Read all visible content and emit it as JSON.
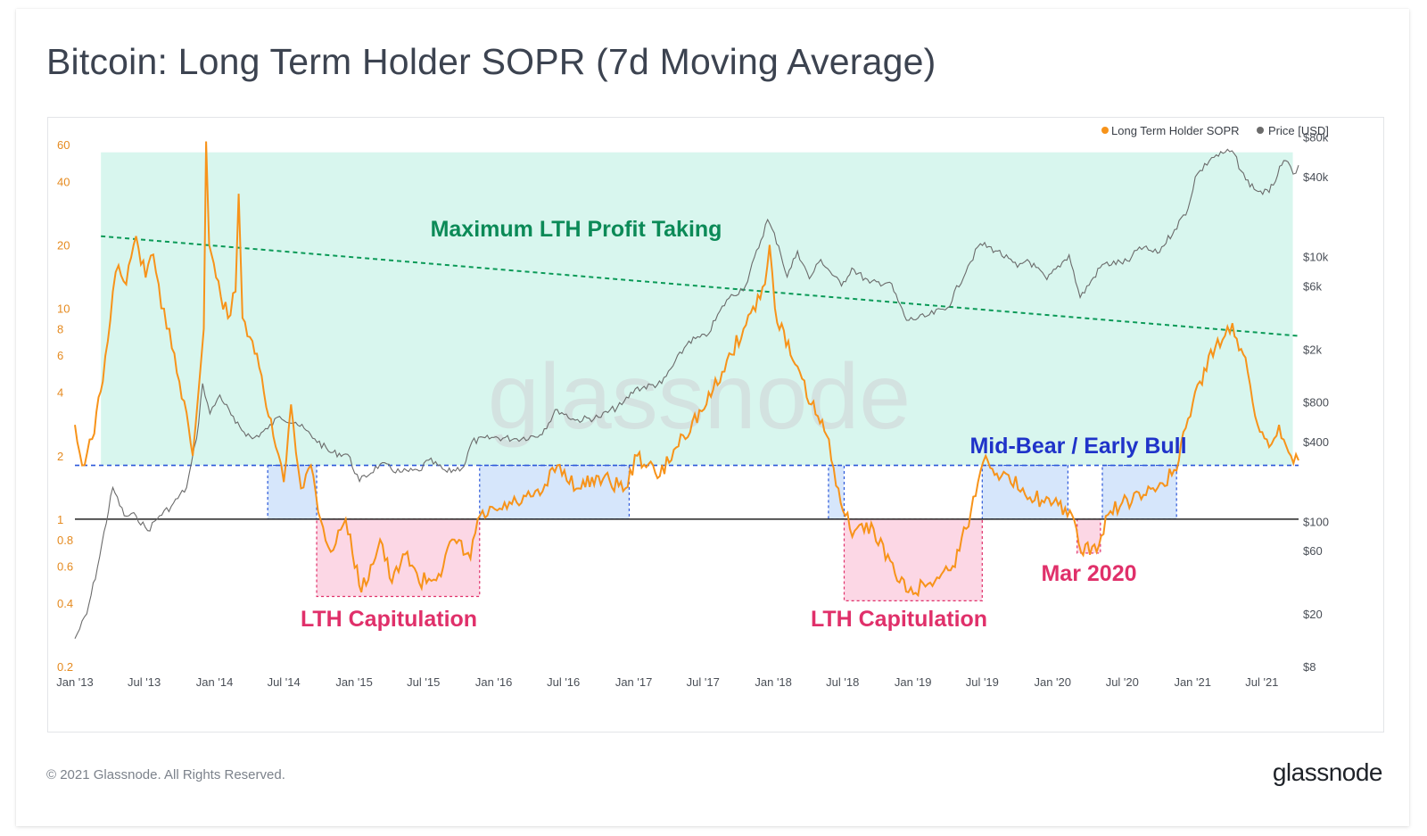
{
  "header": {
    "title": "Bitcoin: Long Term Holder SOPR (7d Moving Average)"
  },
  "footer": {
    "copyright": "© 2021 Glassnode. All Rights Reserved.",
    "brand": "glassnode"
  },
  "watermark": "glassnode",
  "colors": {
    "sopr": "#f7931a",
    "price": "#6b6b6b",
    "profit_zone": "#d8f6ee",
    "profit_line": "#0a9a57",
    "capitulation": "#fcd7e5",
    "capitulation_border": "#e0306a",
    "midbear": "#d6e6fb",
    "midbear_border": "#2b57d9",
    "baseline": "#222222"
  },
  "chart_data": {
    "type": "line",
    "title": "Bitcoin: Long Term Holder SOPR (7d Moving Average)",
    "x_tick_labels": [
      "Jan '13",
      "Jul '13",
      "Jan '14",
      "Jul '14",
      "Jan '15",
      "Jul '15",
      "Jan '16",
      "Jul '16",
      "Jan '17",
      "Jul '17",
      "Jan '18",
      "Jul '18",
      "Jan '19",
      "Jul '19",
      "Jan '20",
      "Jul '20",
      "Jan '21",
      "Jul '21"
    ],
    "x_range": [
      "2013-01-01",
      "2021-10-05"
    ],
    "y_left": {
      "scale": "log",
      "range": [
        0.2,
        70
      ],
      "ticks": [
        0.2,
        0.4,
        0.6,
        0.8,
        1,
        2,
        4,
        6,
        8,
        10,
        20,
        40,
        60
      ],
      "tick_labels": [
        "0.2",
        "0.4",
        "0.6",
        "0.8",
        "1",
        "2",
        "4",
        "6",
        "8",
        "10",
        "20",
        "40",
        "60"
      ]
    },
    "y_right": {
      "scale": "log",
      "range": [
        8,
        90000
      ],
      "ticks": [
        8,
        20,
        60,
        100,
        400,
        800,
        2000,
        6000,
        10000,
        40000,
        80000
      ],
      "tick_labels": [
        "$8",
        "$20",
        "$60",
        "$100",
        "$400",
        "$800",
        "$2k",
        "$6k",
        "$10k",
        "$40k",
        "$80k"
      ]
    },
    "legend": {
      "placement": "top-right",
      "entries": [
        "Long Term Holder SOPR",
        "Price [USD]"
      ]
    },
    "series": [
      {
        "name": "Long Term Holder SOPR",
        "axis": "left",
        "points": [
          [
            "2013-01-01",
            2.8
          ],
          [
            "2013-01-20",
            1.8
          ],
          [
            "2013-02-15",
            2.4
          ],
          [
            "2013-03-15",
            4.5
          ],
          [
            "2013-04-10",
            12
          ],
          [
            "2013-04-25",
            16
          ],
          [
            "2013-05-15",
            13
          ],
          [
            "2013-06-10",
            22
          ],
          [
            "2013-07-05",
            14
          ],
          [
            "2013-07-25",
            18
          ],
          [
            "2013-08-15",
            10
          ],
          [
            "2013-09-05",
            8
          ],
          [
            "2013-10-01",
            4.5
          ],
          [
            "2013-10-20",
            3.2
          ],
          [
            "2013-11-05",
            2
          ],
          [
            "2013-11-20",
            4
          ],
          [
            "2013-12-04",
            8
          ],
          [
            "2013-12-10",
            62
          ],
          [
            "2013-12-18",
            20
          ],
          [
            "2014-01-05",
            14
          ],
          [
            "2014-02-05",
            9
          ],
          [
            "2014-02-25",
            12
          ],
          [
            "2014-03-05",
            35
          ],
          [
            "2014-03-15",
            9
          ],
          [
            "2014-04-10",
            7
          ],
          [
            "2014-05-10",
            4
          ],
          [
            "2014-06-10",
            2.2
          ],
          [
            "2014-07-01",
            1.5
          ],
          [
            "2014-07-20",
            3.5
          ],
          [
            "2014-08-15",
            1.4
          ],
          [
            "2014-09-10",
            1.8
          ],
          [
            "2014-10-05",
            1.0
          ],
          [
            "2014-11-01",
            0.7
          ],
          [
            "2014-12-10",
            1.0
          ],
          [
            "2015-01-20",
            0.45
          ],
          [
            "2015-03-10",
            0.8
          ],
          [
            "2015-04-10",
            0.5
          ],
          [
            "2015-05-20",
            0.7
          ],
          [
            "2015-06-20",
            0.5
          ],
          [
            "2015-08-10",
            0.55
          ],
          [
            "2015-09-20",
            0.8
          ],
          [
            "2015-11-01",
            0.65
          ],
          [
            "2015-11-20",
            1.0
          ],
          [
            "2016-01-10",
            1.1
          ],
          [
            "2016-03-01",
            1.2
          ],
          [
            "2016-05-01",
            1.3
          ],
          [
            "2016-06-15",
            1.8
          ],
          [
            "2016-08-10",
            1.4
          ],
          [
            "2016-10-01",
            1.6
          ],
          [
            "2016-12-10",
            1.4
          ],
          [
            "2017-01-10",
            2.0
          ],
          [
            "2017-03-10",
            1.6
          ],
          [
            "2017-05-10",
            2.5
          ],
          [
            "2017-07-10",
            3.5
          ],
          [
            "2017-08-20",
            5.0
          ],
          [
            "2017-10-15",
            8.0
          ],
          [
            "2017-12-10",
            13
          ],
          [
            "2017-12-22",
            20
          ],
          [
            "2018-01-05",
            10
          ],
          [
            "2018-02-15",
            6
          ],
          [
            "2018-04-10",
            3.5
          ],
          [
            "2018-05-20",
            2.5
          ],
          [
            "2018-06-20",
            1.4
          ],
          [
            "2018-07-20",
            0.9
          ],
          [
            "2018-09-20",
            0.9
          ],
          [
            "2018-11-15",
            0.55
          ],
          [
            "2018-12-20",
            0.45
          ],
          [
            "2019-02-15",
            0.5
          ],
          [
            "2019-04-15",
            0.6
          ],
          [
            "2019-05-20",
            0.9
          ],
          [
            "2019-06-20",
            1.5
          ],
          [
            "2019-07-10",
            2.0
          ],
          [
            "2019-08-20",
            1.6
          ],
          [
            "2019-10-15",
            1.4
          ],
          [
            "2019-12-10",
            1.2
          ],
          [
            "2020-02-15",
            1.1
          ],
          [
            "2020-03-15",
            0.7
          ],
          [
            "2020-05-01",
            0.75
          ],
          [
            "2020-05-25",
            1.05
          ],
          [
            "2020-07-01",
            1.2
          ],
          [
            "2020-09-01",
            1.3
          ],
          [
            "2020-11-20",
            1.7
          ],
          [
            "2020-12-20",
            3.0
          ],
          [
            "2021-01-20",
            4.5
          ],
          [
            "2021-03-01",
            6.5
          ],
          [
            "2021-04-15",
            8.5
          ],
          [
            "2021-05-25",
            5.0
          ],
          [
            "2021-06-20",
            2.8
          ],
          [
            "2021-07-20",
            2.2
          ],
          [
            "2021-08-15",
            2.8
          ],
          [
            "2021-09-15",
            2.0
          ],
          [
            "2021-10-05",
            1.9
          ]
        ]
      },
      {
        "name": "Price [USD]",
        "axis": "right",
        "points": [
          [
            "2013-01-01",
            13
          ],
          [
            "2013-02-01",
            20
          ],
          [
            "2013-03-01",
            45
          ],
          [
            "2013-04-10",
            180
          ],
          [
            "2013-05-10",
            110
          ],
          [
            "2013-06-10",
            110
          ],
          [
            "2013-07-10",
            85
          ],
          [
            "2013-08-10",
            110
          ],
          [
            "2013-09-10",
            130
          ],
          [
            "2013-10-20",
            180
          ],
          [
            "2013-11-15",
            420
          ],
          [
            "2013-12-01",
            1100
          ],
          [
            "2013-12-20",
            650
          ],
          [
            "2014-01-15",
            900
          ],
          [
            "2014-02-25",
            550
          ],
          [
            "2014-04-10",
            420
          ],
          [
            "2014-05-20",
            500
          ],
          [
            "2014-06-20",
            620
          ],
          [
            "2014-08-01",
            560
          ],
          [
            "2014-09-20",
            420
          ],
          [
            "2014-11-01",
            330
          ],
          [
            "2014-12-15",
            320
          ],
          [
            "2015-01-15",
            200
          ],
          [
            "2015-03-10",
            270
          ],
          [
            "2015-05-01",
            235
          ],
          [
            "2015-06-20",
            240
          ],
          [
            "2015-07-15",
            290
          ],
          [
            "2015-09-01",
            235
          ],
          [
            "2015-10-15",
            260
          ],
          [
            "2015-11-05",
            400
          ],
          [
            "2016-01-01",
            430
          ],
          [
            "2016-03-01",
            420
          ],
          [
            "2016-05-01",
            450
          ],
          [
            "2016-06-15",
            700
          ],
          [
            "2016-08-01",
            580
          ],
          [
            "2016-10-01",
            610
          ],
          [
            "2016-12-01",
            760
          ],
          [
            "2017-01-05",
            1000
          ],
          [
            "2017-03-15",
            1100
          ],
          [
            "2017-05-25",
            2300
          ],
          [
            "2017-07-10",
            2500
          ],
          [
            "2017-09-01",
            4700
          ],
          [
            "2017-10-20",
            6000
          ],
          [
            "2017-12-17",
            19000
          ],
          [
            "2018-01-15",
            12000
          ],
          [
            "2018-02-06",
            7000
          ],
          [
            "2018-03-05",
            11000
          ],
          [
            "2018-04-05",
            6800
          ],
          [
            "2018-05-05",
            9500
          ],
          [
            "2018-06-28",
            6000
          ],
          [
            "2018-07-25",
            8200
          ],
          [
            "2018-09-10",
            6300
          ],
          [
            "2018-11-01",
            6400
          ],
          [
            "2018-12-15",
            3300
          ],
          [
            "2019-02-01",
            3500
          ],
          [
            "2019-04-01",
            4100
          ],
          [
            "2019-05-25",
            8500
          ],
          [
            "2019-06-26",
            12500
          ],
          [
            "2019-08-10",
            11000
          ],
          [
            "2019-10-01",
            8300
          ],
          [
            "2019-10-27",
            9500
          ],
          [
            "2019-12-17",
            6700
          ],
          [
            "2020-02-13",
            10300
          ],
          [
            "2020-03-13",
            4900
          ],
          [
            "2020-05-10",
            8700
          ],
          [
            "2020-07-20",
            9200
          ],
          [
            "2020-08-15",
            11800
          ],
          [
            "2020-10-01",
            10600
          ],
          [
            "2020-11-15",
            16000
          ],
          [
            "2020-12-20",
            23000
          ],
          [
            "2021-01-08",
            40000
          ],
          [
            "2021-02-20",
            56000
          ],
          [
            "2021-04-14",
            63000
          ],
          [
            "2021-05-20",
            38000
          ],
          [
            "2021-06-22",
            31000
          ],
          [
            "2021-07-20",
            30500
          ],
          [
            "2021-08-22",
            49000
          ],
          [
            "2021-09-07",
            52000
          ],
          [
            "2021-09-21",
            42000
          ],
          [
            "2021-10-05",
            49000
          ]
        ]
      }
    ],
    "regions": {
      "profit_taking": {
        "label": "Maximum LTH Profit Taking",
        "x_range": [
          "2013-03-10",
          "2021-09-20"
        ],
        "y_top": 55,
        "trend_line": [
          [
            "2013-03-10",
            22
          ],
          [
            "2021-10-05",
            7.4
          ]
        ]
      },
      "capitulation": [
        {
          "label": "LTH Capitulation",
          "x_range": [
            "2014-09-25",
            "2015-11-25"
          ],
          "y_range": [
            0.43,
            1
          ]
        },
        {
          "label": "LTH Capitulation",
          "x_range": [
            "2018-07-05",
            "2019-07-01"
          ],
          "y_range": [
            0.41,
            1
          ]
        },
        {
          "label": "Mar 2020",
          "x_range": [
            "2020-03-05",
            "2020-05-05"
          ],
          "y_range": [
            0.69,
            1
          ]
        }
      ],
      "mid_bear": [
        {
          "x_range": [
            "2014-05-20",
            "2014-09-25"
          ],
          "y_range": [
            1,
            1.8
          ]
        },
        {
          "x_range": [
            "2015-11-25",
            "2016-12-20"
          ],
          "y_range": [
            1,
            1.8
          ]
        },
        {
          "x_range": [
            "2018-05-25",
            "2018-07-05"
          ],
          "y_range": [
            1,
            1.8
          ]
        },
        {
          "x_range": [
            "2019-07-01",
            "2020-02-10"
          ],
          "y_range": [
            1,
            1.8
          ]
        },
        {
          "x_range": [
            "2020-05-10",
            "2020-11-20"
          ],
          "y_range": [
            1,
            1.8
          ]
        }
      ],
      "mid_bear_label": "Mid-Bear / Early Bull",
      "threshold": 1.8
    }
  }
}
